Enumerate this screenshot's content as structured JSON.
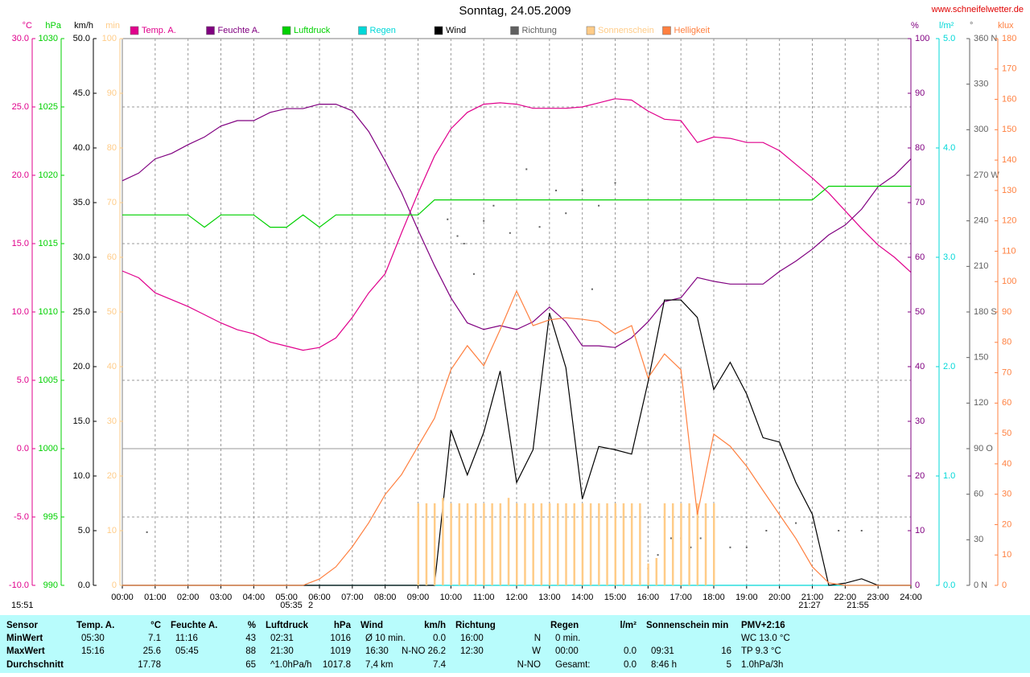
{
  "chart_data": {
    "type": "line",
    "title": "Sonntag, 24.05.2009",
    "source": "www.schneifelwetter.de",
    "grid": true,
    "xlim": [
      0,
      24
    ],
    "xticks": [
      {
        "value": 0,
        "label": "00:00"
      },
      {
        "value": 1,
        "label": "01:00"
      },
      {
        "value": 2,
        "label": "02:00"
      },
      {
        "value": 3,
        "label": "03:00"
      },
      {
        "value": 4,
        "label": "04:00"
      },
      {
        "value": 5,
        "label": "05:00"
      },
      {
        "value": 6,
        "label": "06:00"
      },
      {
        "value": 7,
        "label": "07:00"
      },
      {
        "value": 8,
        "label": "08:00"
      },
      {
        "value": 9,
        "label": "09:00"
      },
      {
        "value": 10,
        "label": "10:00"
      },
      {
        "value": 11,
        "label": "11:00"
      },
      {
        "value": 12,
        "label": "12:00"
      },
      {
        "value": 13,
        "label": "13:00"
      },
      {
        "value": 14,
        "label": "14:00"
      },
      {
        "value": 15,
        "label": "15:00"
      },
      {
        "value": 16,
        "label": "16:00"
      },
      {
        "value": 17,
        "label": "17:00"
      },
      {
        "value": 18,
        "label": "18:00"
      },
      {
        "value": 19,
        "label": "19:00"
      },
      {
        "value": 20,
        "label": "20:00"
      },
      {
        "value": 21,
        "label": "21:00"
      },
      {
        "value": 22,
        "label": "22:00"
      },
      {
        "value": 23,
        "label": "23:00"
      },
      {
        "value": 24,
        "label": "24:00"
      }
    ],
    "x": [
      0,
      0.5,
      1,
      1.5,
      2,
      2.5,
      3,
      3.5,
      4,
      4.5,
      5,
      5.5,
      6,
      6.5,
      7,
      7.5,
      8,
      8.5,
      9,
      9.5,
      10,
      10.5,
      11,
      11.5,
      12,
      12.5,
      13,
      13.5,
      14,
      14.5,
      15,
      15.5,
      16,
      16.5,
      17,
      17.5,
      18,
      18.5,
      19,
      19.5,
      20,
      20.5,
      21,
      21.5,
      22,
      22.5,
      23,
      23.5,
      24
    ],
    "annotations": [
      "15:51",
      "05:35",
      "2",
      "21:27",
      "21:55"
    ],
    "series": [
      {
        "name": "Temp. A.",
        "unit": "°C",
        "side": "left",
        "mark": "line",
        "color": "#e0008c",
        "ylim": [
          -10,
          30
        ],
        "yticks": [
          {
            "value": 30,
            "label": "30.0"
          },
          {
            "value": 25,
            "label": "25.0"
          },
          {
            "value": 20,
            "label": "20.0"
          },
          {
            "value": 15,
            "label": "15.0"
          },
          {
            "value": 10,
            "label": "10.0"
          },
          {
            "value": 5,
            "label": "5.0"
          },
          {
            "value": 0,
            "label": "0.0"
          },
          {
            "value": -5,
            "label": "-5.0"
          },
          {
            "value": -10,
            "label": "-10.0"
          }
        ],
        "values": [
          13.0,
          12.5,
          11.4,
          10.9,
          10.4,
          9.8,
          9.2,
          8.7,
          8.4,
          7.8,
          7.5,
          7.2,
          7.4,
          8.1,
          9.6,
          11.4,
          12.8,
          15.8,
          18.7,
          21.4,
          23.4,
          24.6,
          25.2,
          25.3,
          25.2,
          24.9,
          24.9,
          24.9,
          25.0,
          25.3,
          25.6,
          25.5,
          24.7,
          24.1,
          24.0,
          22.4,
          22.8,
          22.7,
          22.4,
          22.4,
          21.8,
          20.8,
          19.8,
          18.7,
          17.4,
          16.1,
          14.9,
          14.0,
          12.9
        ]
      },
      {
        "name": "Feuchte A.",
        "unit": "%",
        "side": "right",
        "mark": "line",
        "color": "#800080",
        "ylim": [
          0,
          100
        ],
        "yticks": [
          100,
          90,
          80,
          70,
          60,
          50,
          40,
          30,
          20,
          10,
          0
        ],
        "values": [
          74,
          75.4,
          78,
          79,
          80.6,
          82,
          84,
          85,
          85,
          86.5,
          87.2,
          87.2,
          88,
          88,
          86.8,
          83,
          77.6,
          71.8,
          65,
          58.5,
          52.6,
          48,
          46.8,
          47.5,
          46.8,
          48.2,
          50.9,
          48.2,
          43.8,
          43.8,
          43.5,
          45.3,
          48.2,
          51.9,
          52.6,
          56.3,
          55.6,
          55.1,
          55.1,
          55.1,
          57.4,
          59.3,
          61.5,
          64.1,
          65.9,
          68.8,
          72.9,
          75,
          78
        ]
      },
      {
        "name": "Luftdruck",
        "unit": "hPa",
        "side": "left",
        "mark": "line",
        "color": "#00d000",
        "ylim": [
          990,
          1030
        ],
        "yticks": [
          1030,
          1025,
          1020,
          1015,
          1010,
          1005,
          1000,
          995,
          990
        ],
        "values": [
          1017.1,
          1017.1,
          1017.1,
          1017.1,
          1017.1,
          1016.2,
          1017.1,
          1017.1,
          1017.1,
          1016.2,
          1016.2,
          1017.1,
          1016.2,
          1017.1,
          1017.1,
          1017.1,
          1017.1,
          1017.1,
          1017.1,
          1018.2,
          1018.2,
          1018.2,
          1018.2,
          1018.2,
          1018.2,
          1018.2,
          1018.2,
          1018.2,
          1018.2,
          1018.2,
          1018.2,
          1018.2,
          1018.2,
          1018.2,
          1018.2,
          1018.2,
          1018.2,
          1018.2,
          1018.2,
          1018.2,
          1018.2,
          1018.2,
          1018.2,
          1019.2,
          1019.2,
          1019.2,
          1019.2,
          1019.2,
          1019.2
        ]
      },
      {
        "name": "Regen",
        "unit": "l/m²",
        "side": "right",
        "mark": "line",
        "color": "#00d8d8",
        "ylim": [
          0,
          5
        ],
        "yticks": [
          {
            "value": 5,
            "label": "5.0"
          },
          {
            "value": 4,
            "label": "4.0"
          },
          {
            "value": 3,
            "label": "3.0"
          },
          {
            "value": 2,
            "label": "2.0"
          },
          {
            "value": 1,
            "label": "1.0"
          },
          {
            "value": 0,
            "label": "0.0"
          }
        ],
        "values": [
          0,
          0,
          0,
          0,
          0,
          0,
          0,
          0,
          0,
          0,
          0,
          0,
          0,
          0,
          0,
          0,
          0,
          0,
          0,
          0,
          0,
          0,
          0,
          0,
          0,
          0,
          0,
          0,
          0,
          0,
          0,
          0,
          0,
          0,
          0,
          0,
          0,
          0,
          0,
          0,
          0,
          0,
          0,
          0,
          0,
          0,
          0,
          0,
          0
        ]
      },
      {
        "name": "Wind",
        "unit": "km/h",
        "side": "left",
        "mark": "line",
        "color": "#000000",
        "ylim": [
          0,
          50
        ],
        "yticks": [
          {
            "value": 50,
            "label": "50.0"
          },
          {
            "value": 45,
            "label": "45.0"
          },
          {
            "value": 40,
            "label": "40.0"
          },
          {
            "value": 35,
            "label": "35.0"
          },
          {
            "value": 30,
            "label": "30.0"
          },
          {
            "value": 25,
            "label": "25.0"
          },
          {
            "value": 20,
            "label": "20.0"
          },
          {
            "value": 15,
            "label": "15.0"
          },
          {
            "value": 10,
            "label": "10.0"
          },
          {
            "value": 5,
            "label": "5.0"
          },
          {
            "value": 0,
            "label": "0.0"
          }
        ],
        "values": [
          0,
          0,
          0,
          0,
          0,
          0,
          0,
          0,
          0,
          0,
          0,
          0,
          0,
          0,
          0,
          0,
          0,
          0,
          0,
          0,
          14.2,
          10.1,
          14.0,
          19.6,
          9.4,
          12.4,
          24.9,
          19.9,
          7.9,
          12.7,
          12.4,
          12.0,
          18.6,
          26.1,
          26.1,
          24.5,
          17.9,
          20.4,
          17.5,
          13.5,
          13.1,
          9.4,
          6.5,
          0,
          0.2,
          0.6,
          0,
          0,
          0
        ]
      },
      {
        "name": "Richtung",
        "unit": "°",
        "side": "right",
        "mark": "scatter",
        "color": "#606060",
        "ylim": [
          0,
          360
        ],
        "yticks": [
          {
            "value": 360,
            "label": "360 N"
          },
          330,
          300,
          {
            "value": 270,
            "label": "270 W"
          },
          240,
          210,
          {
            "value": 180,
            "label": "180 S"
          },
          150,
          120,
          {
            "value": 90,
            "label": "90 O"
          },
          60,
          30,
          {
            "value": 0,
            "label": "0 N"
          }
        ],
        "x": [
          0.75,
          9.9,
          10.2,
          10.4,
          10.7,
          11.0,
          11.3,
          11.8,
          12.3,
          12.7,
          13.2,
          13.5,
          14.0,
          14.3,
          14.5,
          15.0,
          16.0,
          16.3,
          16.7,
          17.0,
          17.3,
          17.6,
          18.0,
          18.5,
          19.0,
          19.6,
          20.5,
          21.0,
          21.8,
          22.5
        ],
        "values": [
          35,
          241,
          230,
          225,
          205,
          240,
          250,
          232,
          274,
          236,
          260,
          245,
          260,
          195,
          250,
          265,
          11,
          20,
          31,
          31,
          25,
          31,
          31,
          25,
          25,
          36,
          41,
          41,
          36,
          36
        ]
      },
      {
        "name": "Sonnenschein",
        "unit": "min",
        "side": "left",
        "mark": "bar",
        "color": "#ffcc88",
        "ylim": [
          0,
          100
        ],
        "yticks": [
          100,
          90,
          80,
          70,
          60,
          50,
          40,
          30,
          20,
          10,
          0
        ],
        "x": [
          9,
          9.25,
          9.5,
          9.75,
          10,
          10.25,
          10.5,
          10.75,
          11,
          11.25,
          11.5,
          11.75,
          12,
          12.25,
          12.5,
          12.75,
          13,
          13.25,
          13.5,
          13.75,
          14,
          14.25,
          14.5,
          14.75,
          15,
          15.25,
          15.5,
          15.75,
          16,
          16.25,
          16.5,
          16.75,
          17,
          17.25,
          17.5,
          17.75,
          18
        ],
        "values": [
          15,
          15,
          15,
          16,
          15,
          15,
          15,
          15,
          15,
          15,
          15,
          16,
          15,
          15,
          15,
          15,
          15,
          15,
          15,
          15,
          15,
          15,
          15,
          15,
          15,
          15,
          15,
          15,
          4,
          5,
          15,
          15,
          15,
          15,
          15,
          15,
          15
        ]
      },
      {
        "name": "Helligkeit",
        "unit": "klux",
        "side": "right",
        "mark": "line",
        "color": "#ff8040",
        "ylim": [
          0,
          180
        ],
        "yticks": [
          180,
          170,
          160,
          150,
          140,
          130,
          120,
          110,
          100,
          90,
          80,
          70,
          60,
          50,
          40,
          30,
          20,
          10,
          0
        ],
        "values": [
          0,
          0,
          0,
          0,
          0,
          0,
          0,
          0,
          0,
          0,
          0,
          0,
          2.1,
          6.1,
          12.7,
          20.6,
          29.9,
          36.5,
          45.8,
          55,
          71,
          78.9,
          72.3,
          84.2,
          96.9,
          85.5,
          87.4,
          88.1,
          87.6,
          86.8,
          82.8,
          85.5,
          68.3,
          76.2,
          71,
          23.3,
          49.8,
          45.8,
          39.2,
          31.2,
          23.3,
          15.4,
          6.1,
          0.8,
          0,
          0,
          0,
          0,
          0
        ]
      }
    ]
  },
  "table": {
    "header": [
      [
        "Sensor"
      ],
      [
        "Temp. A.",
        "°C"
      ],
      [
        "Feuchte A.",
        "%"
      ],
      [
        "Luftdruck",
        "hPa"
      ],
      [
        "Wind",
        "km/h"
      ],
      [
        "Richtung"
      ],
      [
        "Regen",
        "l/m²"
      ],
      [
        "Sonnenschein min"
      ],
      [
        "PMV+2:16"
      ]
    ],
    "rows": [
      {
        "label": "MinWert",
        "cells": [
          {
            "l": "05:30",
            "r": "7.1"
          },
          {
            "l": "11:16",
            "r": "43"
          },
          {
            "l": "02:31",
            "r": "1016"
          },
          {
            "l": "Ø 10 min.",
            "r": "0.0"
          },
          {
            "l": "16:00",
            "r": "N"
          },
          {
            "l": "0 min."
          },
          {},
          {
            "l": "WC 13.0 °C"
          }
        ]
      },
      {
        "label": "MaxWert",
        "cells": [
          {
            "l": "15:16",
            "r": "25.6"
          },
          {
            "l": "05:45",
            "r": "88"
          },
          {
            "l": "21:30",
            "r": "1019"
          },
          {
            "l": "16:30",
            "r": "N-NO 26.2"
          },
          {
            "l": "12:30",
            "r": "W"
          },
          {
            "l": "00:00",
            "r": "0.0"
          },
          {
            "l": "09:31",
            "r": "16"
          },
          {
            "l": "TP 9.3 °C"
          }
        ]
      },
      {
        "label": "Durchschnitt",
        "cells": [
          {
            "r": "17.78"
          },
          {
            "r": "65"
          },
          {
            "l": "^1.0hPa/h",
            "r": "1017.8"
          },
          {
            "l": "7,4 km",
            "r": "7.4"
          },
          {
            "r": "N-NO"
          },
          {
            "l": "Gesamt:",
            "r": "0.0"
          },
          {
            "l": "8:46 h",
            "r": "5"
          },
          {
            "l": "1.0hPa/3h"
          }
        ]
      }
    ]
  }
}
